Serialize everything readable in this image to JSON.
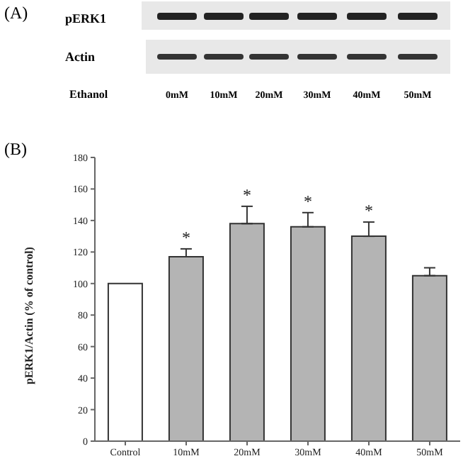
{
  "chart_data": {
    "type": "bar",
    "ylabel": "pERK1/Actin (% of control)",
    "categories": [
      "Control",
      "10mM",
      "20mM",
      "30mM",
      "40mM",
      "50mM"
    ],
    "values": [
      100,
      117,
      138,
      136,
      130,
      105
    ],
    "colors": [
      "#ffffff",
      "#b4b4b4",
      "#b4b4b4",
      "#b4b4b4",
      "#b4b4b4",
      "#b4b4b4"
    ],
    "errors": [
      null,
      [
        117,
        122
      ],
      [
        138,
        149
      ],
      [
        136,
        145
      ],
      [
        130,
        139
      ],
      [
        105,
        110
      ]
    ],
    "ylim": [
      0,
      180
    ],
    "yticks": [
      0,
      20,
      40,
      60,
      80,
      100,
      120,
      140,
      160,
      180
    ],
    "grid": false,
    "legend": false,
    "annotations": [
      "(A)",
      "pERK1",
      "Actin",
      "Ethanol",
      "0mM",
      "10mM",
      "20mM",
      "30mM",
      "40mM",
      "50mM",
      "(B)",
      {
        "text": "*",
        "x": "10mM",
        "y": 122
      },
      {
        "text": "*",
        "x": "20mM",
        "y": 149
      },
      {
        "text": "*",
        "x": "30mM",
        "y": 145
      },
      {
        "text": "*",
        "x": "40mM",
        "y": 139
      }
    ]
  }
}
